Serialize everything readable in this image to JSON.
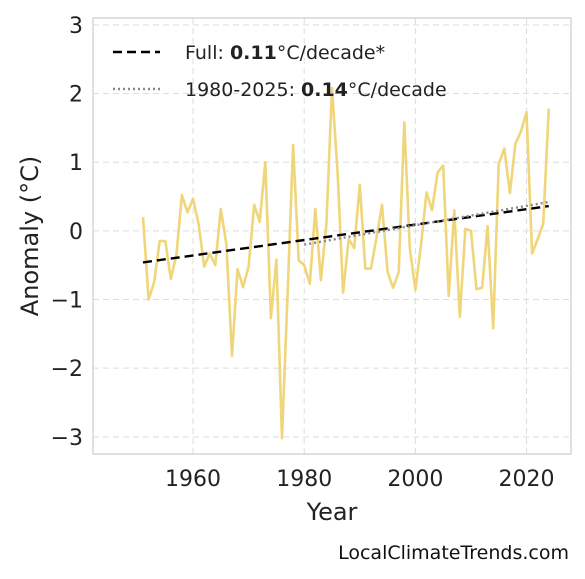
{
  "chart_data": {
    "type": "line",
    "xlabel": "Year",
    "ylabel": "Anomaly (°C)",
    "xlim": [
      1942,
      2028
    ],
    "ylim": [
      -3.25,
      3.1
    ],
    "xticks": [
      1960,
      1980,
      2000,
      2020
    ],
    "yticks": [
      -3,
      -2,
      -1,
      0,
      1,
      2,
      3
    ],
    "ytick_labels": [
      "−3",
      "−2",
      "−1",
      "0",
      "1",
      "2",
      "3"
    ],
    "grid": true,
    "legend_position": "top-left",
    "series": [
      {
        "color": "#f0d67a",
        "style": "solid",
        "x": [
          1951,
          1952,
          1953,
          1954,
          1955,
          1956,
          1957,
          1958,
          1959,
          1960,
          1961,
          1962,
          1963,
          1964,
          1965,
          1966,
          1967,
          1968,
          1969,
          1970,
          1971,
          1972,
          1973,
          1974,
          1975,
          1976,
          1977,
          1978,
          1979,
          1980,
          1981,
          1982,
          1983,
          1984,
          1985,
          1986,
          1987,
          1988,
          1989,
          1990,
          1991,
          1992,
          1993,
          1994,
          1995,
          1996,
          1997,
          1998,
          1999,
          2000,
          2001,
          2002,
          2003,
          2004,
          2005,
          2006,
          2007,
          2008,
          2009,
          2010,
          2011,
          2012,
          2013,
          2014,
          2015,
          2016,
          2017,
          2018,
          2019,
          2020,
          2021,
          2022,
          2023,
          2024
        ],
        "values": [
          0.2,
          -1.0,
          -0.75,
          -0.15,
          -0.15,
          -0.7,
          -0.35,
          0.52,
          0.27,
          0.47,
          0.1,
          -0.52,
          -0.33,
          -0.5,
          0.32,
          -0.2,
          -1.82,
          -0.56,
          -0.82,
          -0.52,
          0.38,
          0.13,
          1.0,
          -1.27,
          -0.42,
          -3.02,
          -0.95,
          1.25,
          -0.43,
          -0.5,
          -0.77,
          0.32,
          -0.72,
          0.1,
          2.08,
          0.85,
          -0.9,
          -0.12,
          -0.25,
          0.67,
          -0.55,
          -0.55,
          -0.1,
          0.38,
          -0.6,
          -0.83,
          -0.6,
          1.58,
          -0.25,
          -0.86,
          -0.22,
          0.56,
          0.3,
          0.85,
          0.95,
          -0.95,
          0.3,
          -1.25,
          0.03,
          0.0,
          -0.85,
          -0.83,
          0.07,
          -1.42,
          0.97,
          1.2,
          0.55,
          1.27,
          1.45,
          1.73,
          -0.33,
          -0.12,
          0.1,
          1.78
        ]
      },
      {
        "name": "Full: 0.11°C/decade*",
        "color": "#000000",
        "style": "dashed",
        "x": [
          1951,
          2024
        ],
        "values": [
          -0.46,
          0.36
        ]
      },
      {
        "name": "1980-2025: 0.14°C/decade",
        "color": "#888888",
        "style": "dotted",
        "x": [
          1980,
          2024
        ],
        "values": [
          -0.2,
          0.42
        ]
      }
    ],
    "legend": [
      {
        "prefix": "Full: ",
        "value": "0.11",
        "suffix": "°C/decade*"
      },
      {
        "prefix": "1980-2025: ",
        "value": "0.14",
        "suffix": "°C/decade"
      }
    ]
  },
  "credit": "LocalClimateTrends.com"
}
